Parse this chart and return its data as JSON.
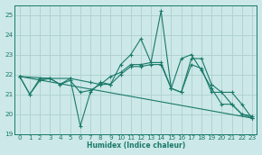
{
  "title": "",
  "xlabel": "Humidex (Indice chaleur)",
  "xlim": [
    -0.5,
    23.5
  ],
  "ylim": [
    19,
    25.5
  ],
  "yticks": [
    19,
    20,
    21,
    22,
    23,
    24,
    25
  ],
  "xticks": [
    0,
    1,
    2,
    3,
    4,
    5,
    6,
    7,
    8,
    9,
    10,
    11,
    12,
    13,
    14,
    15,
    16,
    17,
    18,
    19,
    20,
    21,
    22,
    23
  ],
  "bg_color": "#cce8e8",
  "grid_color": "#aed0d0",
  "line_color": "#1a7a6a",
  "lines": [
    {
      "x": [
        0,
        1,
        2,
        3,
        4,
        5,
        6,
        7,
        8,
        9,
        10,
        11,
        12,
        13,
        14,
        15,
        16,
        17,
        18,
        19,
        20,
        21,
        22,
        23
      ],
      "y": [
        21.9,
        21.0,
        21.8,
        21.8,
        21.5,
        21.8,
        19.4,
        21.1,
        21.6,
        21.5,
        22.5,
        23.0,
        23.8,
        22.6,
        25.2,
        21.3,
        22.8,
        23.0,
        22.2,
        21.3,
        20.5,
        20.5,
        20.0,
        19.8
      ]
    },
    {
      "x": [
        0,
        3,
        5,
        7,
        8,
        9,
        10,
        11,
        12,
        13,
        14,
        15,
        16,
        17,
        18,
        19,
        20,
        21,
        22,
        23
      ],
      "y": [
        21.9,
        21.8,
        21.8,
        21.6,
        21.5,
        21.9,
        22.1,
        22.5,
        22.5,
        22.6,
        22.6,
        21.3,
        21.1,
        22.8,
        22.8,
        21.5,
        21.1,
        21.1,
        20.5,
        19.8
      ]
    },
    {
      "x": [
        0,
        23
      ],
      "y": [
        21.9,
        19.8
      ]
    },
    {
      "x": [
        0,
        1,
        2,
        3,
        4,
        5,
        6,
        7,
        8,
        9,
        10,
        11,
        12,
        13,
        14,
        15,
        16,
        17,
        18,
        19,
        20,
        21,
        22,
        23
      ],
      "y": [
        21.9,
        21.0,
        21.7,
        21.8,
        21.5,
        21.7,
        21.1,
        21.2,
        21.5,
        21.5,
        22.0,
        22.4,
        22.4,
        22.5,
        22.5,
        21.3,
        21.1,
        22.5,
        22.3,
        21.1,
        21.1,
        20.5,
        20.0,
        19.9
      ]
    }
  ]
}
